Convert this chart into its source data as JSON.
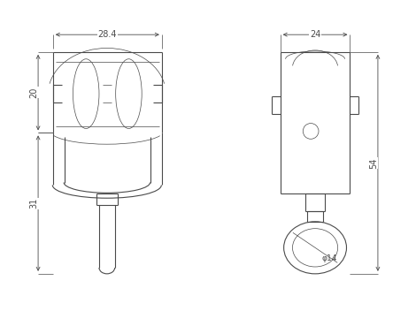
{
  "bg_color": "#ffffff",
  "line_color": "#4a4a4a",
  "lw": 0.8,
  "tlw": 0.5,
  "fig_w": 4.7,
  "fig_h": 3.52,
  "dpi": 100,
  "dim_28_4": "28.4",
  "dim_20": "20",
  "dim_31": "31",
  "dim_24": "24",
  "dim_54": "54",
  "dim_phi14": "φ14"
}
